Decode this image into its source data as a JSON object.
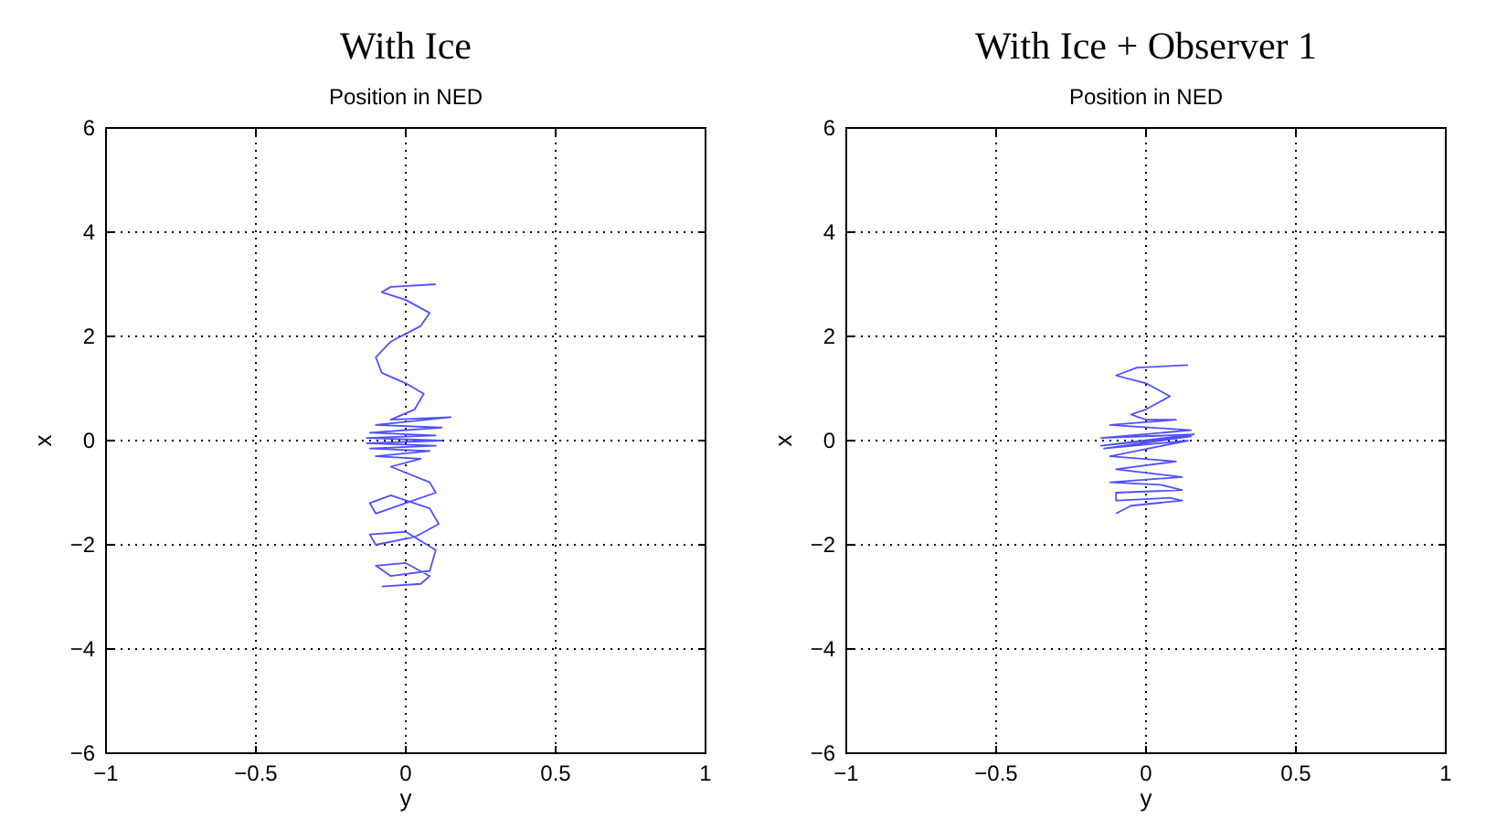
{
  "chart_data": [
    {
      "type": "line",
      "title": "With Ice",
      "subtitle": "Position in NED",
      "xlabel": "y",
      "ylabel": "x",
      "xlim": [
        -1,
        1
      ],
      "ylim": [
        -6,
        6
      ],
      "xticks": [
        -1,
        -0.5,
        0,
        0.5,
        1
      ],
      "yticks": [
        -6,
        -4,
        -2,
        0,
        2,
        4,
        6
      ],
      "grid": true,
      "series": [
        {
          "color": "#5050ff",
          "x": [
            0.1,
            -0.05,
            -0.08,
            0.0,
            0.08,
            0.05,
            -0.05,
            -0.1,
            -0.08,
            0.0,
            0.06,
            0.03,
            -0.05,
            0.15,
            -0.1,
            0.12,
            -0.12,
            0.1,
            -0.13,
            0.12,
            -0.13,
            0.1,
            -0.12,
            0.08,
            -0.1,
            0.05,
            -0.05,
            0.08,
            0.1,
            0.0,
            -0.1,
            -0.12,
            -0.05,
            0.08,
            0.11,
            0.03,
            -0.1,
            -0.12,
            0.0,
            0.1,
            0.08,
            -0.05,
            -0.1,
            0.0,
            0.08,
            0.05,
            -0.08
          ],
          "values": [
            3.0,
            2.95,
            2.85,
            2.7,
            2.45,
            2.2,
            1.9,
            1.6,
            1.3,
            1.1,
            0.9,
            0.6,
            0.4,
            0.45,
            0.3,
            0.25,
            0.15,
            0.1,
            0.05,
            0.0,
            -0.05,
            -0.1,
            -0.15,
            -0.2,
            -0.3,
            -0.35,
            -0.5,
            -0.8,
            -1.0,
            -1.2,
            -1.4,
            -1.2,
            -1.05,
            -1.3,
            -1.6,
            -1.85,
            -2.0,
            -1.8,
            -1.75,
            -2.1,
            -2.5,
            -2.6,
            -2.4,
            -2.35,
            -2.6,
            -2.75,
            -2.8
          ]
        }
      ]
    },
    {
      "type": "line",
      "title": "With Ice + Observer 1",
      "subtitle": "Position in NED",
      "xlabel": "y",
      "ylabel": "x",
      "xlim": [
        -1,
        1
      ],
      "ylim": [
        -6,
        6
      ],
      "xticks": [
        -1,
        -0.5,
        0,
        0.5,
        1
      ],
      "yticks": [
        -6,
        -4,
        -2,
        0,
        2,
        4,
        6
      ],
      "grid": true,
      "series": [
        {
          "color": "#5050ff",
          "x": [
            0.14,
            -0.03,
            -0.1,
            0.0,
            0.08,
            0.0,
            -0.05,
            0.0,
            0.1,
            -0.12,
            0.15,
            -0.15,
            0.16,
            -0.15,
            0.15,
            -0.14,
            0.14,
            -0.12,
            0.1,
            -0.1,
            0.12,
            -0.12,
            0.05,
            0.12,
            -0.1,
            -0.1,
            0.08,
            0.12,
            -0.05,
            -0.1
          ],
          "values": [
            1.45,
            1.4,
            1.25,
            1.1,
            0.85,
            0.6,
            0.5,
            0.4,
            0.4,
            0.3,
            0.2,
            0.05,
            0.12,
            -0.1,
            0.08,
            -0.15,
            0.0,
            -0.3,
            -0.4,
            -0.55,
            -0.7,
            -0.8,
            -0.85,
            -0.95,
            -1.0,
            -1.15,
            -1.1,
            -1.15,
            -1.25,
            -1.4
          ]
        }
      ]
    }
  ]
}
